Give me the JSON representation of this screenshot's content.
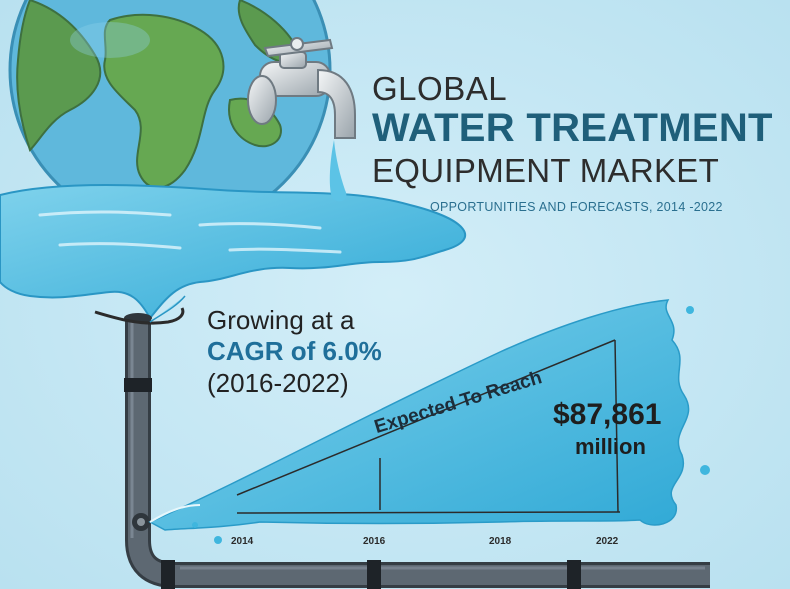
{
  "title": {
    "line1": "GLOBAL",
    "line2": "WATER TREATMENT",
    "line3": "EQUIPMENT MARKET",
    "subtitle": "OPPORTUNITIES AND FORECASTS, 2014 -2022"
  },
  "growth": {
    "line1": "Growing at a",
    "line2": "CAGR  of 6.0%",
    "line3": "(2016-2022)"
  },
  "forecast": {
    "label": "Expected To Reach",
    "amount": "$87,861",
    "unit": "million"
  },
  "years": [
    "2014",
    "2016",
    "2018",
    "2022"
  ],
  "colors": {
    "background": "#c3e6f3",
    "water": "#3fb6de",
    "title_accent": "#1f5f7a",
    "cagr_accent": "#1f6f9a",
    "pipe": "#55606b"
  },
  "icons": [
    "globe-icon",
    "faucet-icon",
    "water-puddle-icon",
    "pipe-icon"
  ]
}
